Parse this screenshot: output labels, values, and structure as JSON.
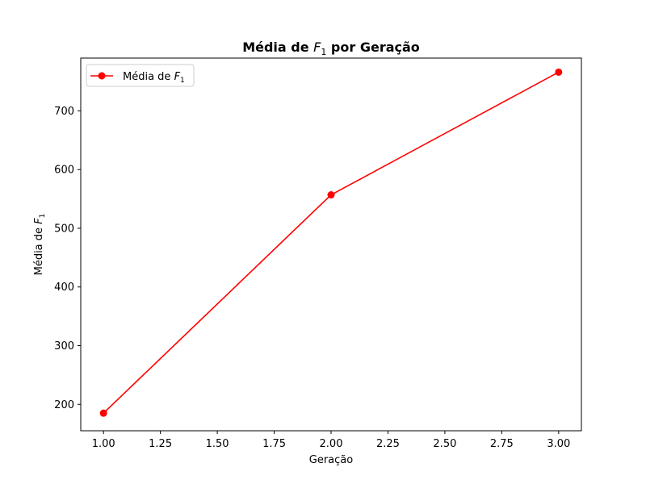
{
  "chart_data": {
    "type": "line",
    "title": {
      "prefix": "Média de ",
      "var": "F",
      "sub": "1",
      "suffix": " por Geração"
    },
    "xlabel": "Geração",
    "ylabel": {
      "prefix": "Média de ",
      "var": "F",
      "sub": "1"
    },
    "xlim": [
      0.9,
      3.1
    ],
    "ylim": [
      155,
      790
    ],
    "xticks": [
      1.0,
      1.25,
      1.5,
      1.75,
      2.0,
      2.25,
      2.5,
      2.75,
      3.0
    ],
    "xtick_labels": [
      "1.00",
      "1.25",
      "1.50",
      "1.75",
      "2.00",
      "2.25",
      "2.50",
      "2.75",
      "3.00"
    ],
    "yticks": [
      200,
      300,
      400,
      500,
      600,
      700
    ],
    "ytick_labels": [
      "200",
      "300",
      "400",
      "500",
      "600",
      "700"
    ],
    "grid": false,
    "legend_position": "top-left",
    "series": [
      {
        "name": {
          "prefix": "Média de ",
          "var": "F",
          "sub": "1"
        },
        "color": "#ff0000",
        "marker": "circle",
        "x": [
          1.0,
          2.0,
          3.0
        ],
        "y": [
          185,
          557,
          766
        ]
      }
    ]
  }
}
